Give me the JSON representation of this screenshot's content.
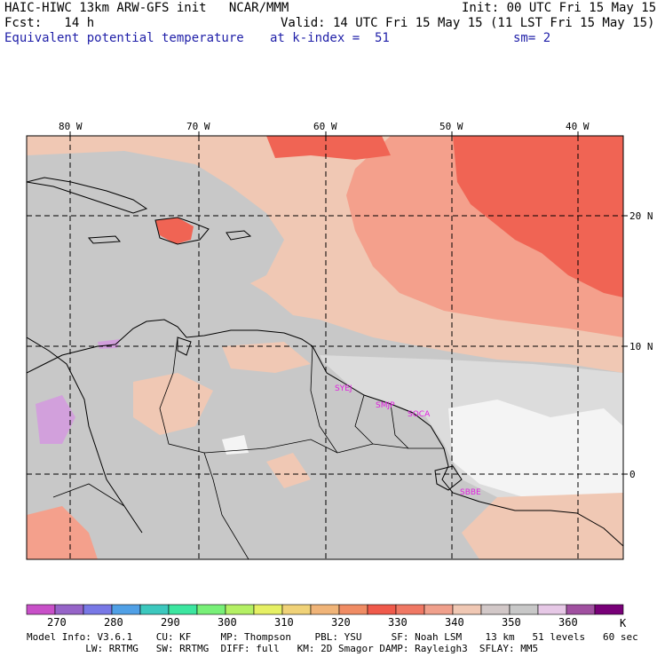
{
  "header": {
    "line1_left": "HAIC-HIWC 13km ARW-GFS init   NCAR/MMM",
    "line1_right": "Init: 00 UTC Fri 15 May 15",
    "line2_left": "Fcst:   14 h",
    "line2_right": "Valid: 14 UTC Fri 15 May 15 (11 LST Fri 15 May 15)",
    "field_name": "Equivalent potential temperature",
    "level": "at k-index =  51",
    "smoothing": "sm= 2"
  },
  "map": {
    "lon_labels": [
      "80 W",
      "70 W",
      "60 W",
      "50 W",
      "40 W"
    ],
    "lat_labels": [
      "20 N",
      "10 N",
      "0"
    ],
    "stations": [
      "SYEJ",
      "SMJP",
      "SOCA",
      "SBBE"
    ],
    "colors": {
      "base_gray": "#c8c8c8",
      "light_gray": "#dcdcdc",
      "tan": "#f0c8b4",
      "salmon": "#f4a08c",
      "red": "#f06454",
      "white": "#f4f4f4",
      "lavender": "#d2a0dc",
      "station_text": "#e020e0"
    }
  },
  "colorbar": {
    "colors": [
      "#c850c8",
      "#9664c8",
      "#7878e6",
      "#50a0e6",
      "#3cc8be",
      "#3ce6a0",
      "#78f078",
      "#b4f064",
      "#e6f064",
      "#f0d278",
      "#f0b478",
      "#f08c64",
      "#f05a4b",
      "#f07864",
      "#f0a08c",
      "#f0c8b4",
      "#d2c8c8",
      "#c8c8c8",
      "#e6c8e6",
      "#a050a0",
      "#780078"
    ],
    "labels": [
      "270",
      "280",
      "290",
      "300",
      "310",
      "320",
      "330",
      "340",
      "350",
      "360"
    ],
    "unit": "K"
  },
  "footer": {
    "line1": "Model Info: V3.6.1    CU: KF     MP: Thompson    PBL: YSU     SF: Noah LSM    13 km   51 levels   60 sec",
    "line2": "          LW: RRTMG   SW: RRTMG  DIFF: full   KM: 2D Smagor DAMP: Rayleigh3  SFLAY: MM5"
  }
}
